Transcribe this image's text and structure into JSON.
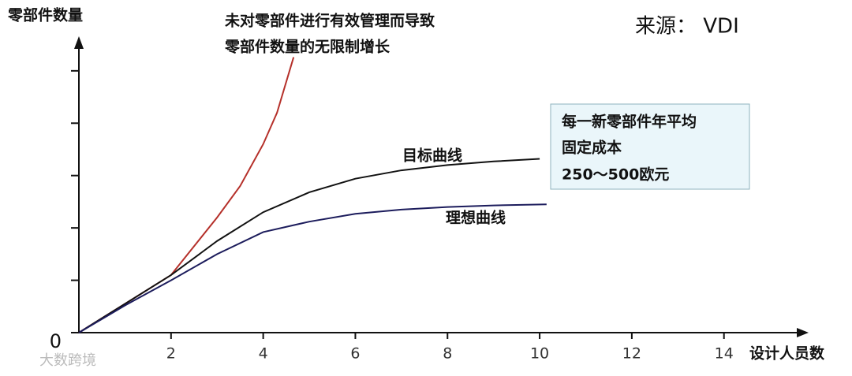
{
  "chart_data": {
    "type": "line",
    "y_title": "零部件数量",
    "x_title": "设计人员数",
    "source": "来源： VDI",
    "annotation": [
      "未对零部件进行有效管理而导致",
      "零部件数量的无限制增长"
    ],
    "note_box": [
      "每一新零部件年平均",
      "固定成本",
      "250～500欧元"
    ],
    "watermark": "大数跨境",
    "xlim": [
      0,
      15.7
    ],
    "ylim": [
      0,
      5.6
    ],
    "xticks": [
      2,
      4,
      6,
      8,
      10,
      12,
      14
    ],
    "yticks": [
      0,
      {
        "value": 1,
        "label": null
      },
      {
        "value": 2,
        "label": null
      },
      {
        "value": 3,
        "label": null
      },
      {
        "value": 4,
        "label": null
      },
      {
        "value": 5,
        "label": null
      }
    ],
    "series": [
      {
        "color": "#b5302a",
        "x": [
          0,
          1,
          2,
          3,
          3.5,
          4,
          4.3,
          4.66
        ],
        "values": [
          0,
          0.55,
          1.1,
          2.2,
          2.8,
          3.6,
          4.2,
          5.26
        ]
      },
      {
        "name": "目标曲线",
        "color": "#111111",
        "x": [
          0,
          1,
          2,
          3,
          4,
          5,
          6,
          7,
          8,
          9,
          10
        ],
        "values": [
          0,
          0.55,
          1.1,
          1.75,
          2.3,
          2.68,
          2.94,
          3.1,
          3.2,
          3.27,
          3.32
        ]
      },
      {
        "name": "理想曲线",
        "color": "#1c1c5c",
        "x": [
          0,
          1,
          2,
          3,
          4,
          5,
          6,
          7,
          8,
          9,
          10.15
        ],
        "values": [
          0,
          0.52,
          1.0,
          1.5,
          1.92,
          2.12,
          2.27,
          2.35,
          2.4,
          2.43,
          2.45
        ]
      }
    ]
  }
}
